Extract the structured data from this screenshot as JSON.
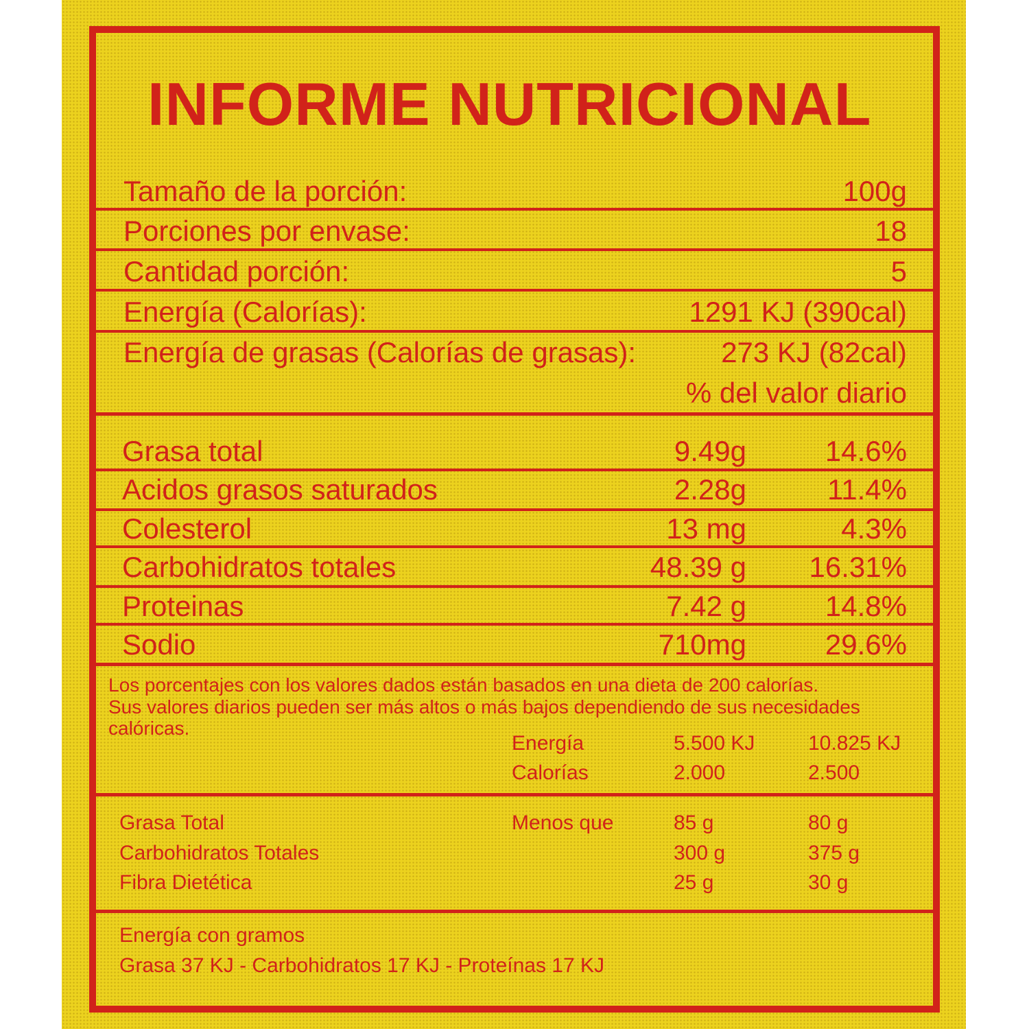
{
  "title": "INFORME NUTRICIONAL",
  "header_rows": [
    {
      "label": "Tamaño de la porción:",
      "value": "100g"
    },
    {
      "label": "Porciones por envase:",
      "value": "18"
    },
    {
      "label": "Cantidad porción:",
      "value": "5"
    },
    {
      "label": "Energía (Calorías):",
      "value": "1291 KJ (390cal)"
    },
    {
      "label": "Energía de grasas (Calorías de grasas):",
      "value": "273 KJ (82cal)"
    }
  ],
  "daily_value_header": "% del valor diario",
  "nutrients": [
    {
      "name": "Grasa total",
      "amount": "9.49g",
      "percent": "14.6%"
    },
    {
      "name": "Acidos grasos saturados",
      "amount": "2.28g",
      "percent": "11.4%"
    },
    {
      "name": "Colesterol",
      "amount": "13 mg",
      "percent": "4.3%"
    },
    {
      "name": "Carbohidratos totales",
      "amount": "48.39 g",
      "percent": "16.31%"
    },
    {
      "name": "Proteinas",
      "amount": "7.42 g",
      "percent": "14.8%"
    },
    {
      "name": "Sodio",
      "amount": "710mg",
      "percent": "29.6%"
    }
  ],
  "footnote": {
    "lines": [
      "Los porcentajes con los valores dados están basados en una dieta de 200 calorías.",
      "Sus valores diarios pueden ser más altos o más bajos dependiendo de sus necesidades",
      "calóricas."
    ],
    "reference": [
      {
        "label": "Energía",
        "v1": "5.500 KJ",
        "v2": "10.825 KJ"
      },
      {
        "label": "Calorías",
        "v1": "2.000",
        "v2": "2.500"
      }
    ]
  },
  "limits": {
    "qualifier": "Menos que",
    "rows": [
      {
        "label": "Grasa Total",
        "v1": "85 g",
        "v2": "80 g"
      },
      {
        "label": "Carbohidratos Totales",
        "v1": "300 g",
        "v2": "375 g"
      },
      {
        "label": "Fibra Dietética",
        "v1": "25 g",
        "v2": "30 g"
      }
    ]
  },
  "energy_per_gram": {
    "heading": "Energía con gramos",
    "text": "Grasa 37 KJ - Carbohidratos 17 KJ - Proteínas 17 KJ"
  },
  "colors": {
    "background": "#ecd21e",
    "ink": "#d1221a"
  }
}
